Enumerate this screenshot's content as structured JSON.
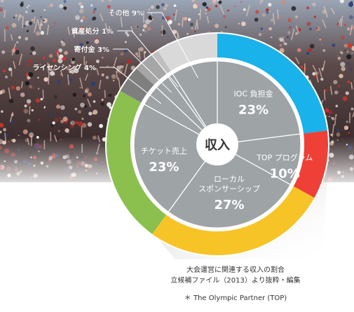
{
  "chart_data": {
    "type": "pie",
    "center_label": "収入",
    "start_angle_deg": 0,
    "slices": [
      {
        "label": "IOC 負担金",
        "value": 23,
        "value_label": "23%",
        "color": "#1ab2ea",
        "label_style": "inner"
      },
      {
        "label": "TOP プログラム",
        "value": 10,
        "value_label": "10%",
        "color": "#ee4036",
        "label_style": "inner"
      },
      {
        "label": "ローカル\nスポンサーシップ",
        "value": 27,
        "value_label": "27%",
        "color": "#f7c427",
        "label_style": "inner"
      },
      {
        "label": "チケット売上",
        "value": 23,
        "value_label": "23%",
        "color": "#8bc04e",
        "label_style": "inner"
      },
      {
        "label": "ライセンシング 4%",
        "value": 4,
        "color": "#7f7f7f",
        "label_style": "callout"
      },
      {
        "label": "寄付金 3%",
        "value": 3,
        "color": "#a6a6a6",
        "label_style": "callout"
      },
      {
        "label": "資産処分 1%",
        "value": 1,
        "color": "#bfbfbf",
        "label_style": "callout"
      },
      {
        "label": "その他 9%",
        "value": 9,
        "color": "#d9d9d9",
        "label_style": "callout"
      }
    ]
  },
  "captions": {
    "line1": "大会運営に関連する収入の割合",
    "line2": "立候補ファイル（2013）より抜粋・編集",
    "note": "＊ The Olympic Partner (TOP)"
  }
}
